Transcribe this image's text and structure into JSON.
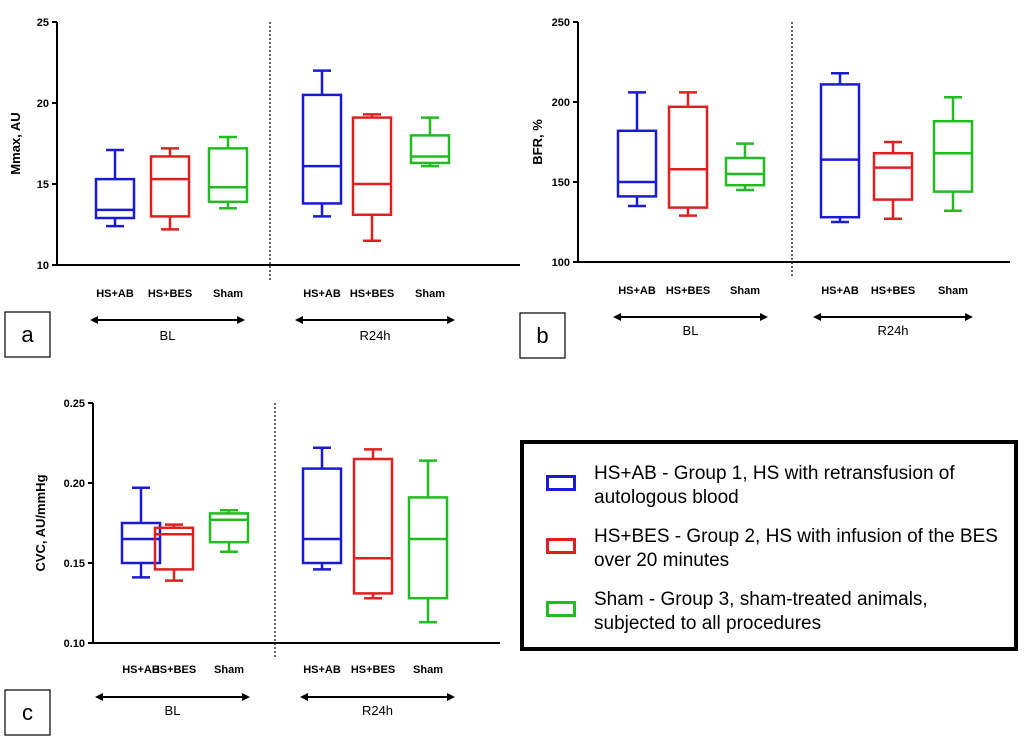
{
  "chart_data": [
    {
      "type": "box",
      "panel_label": "a",
      "ylabel": "Mmax, AU",
      "ylim": [
        10,
        25
      ],
      "yticks": [
        10,
        15,
        20,
        25
      ],
      "categories": [
        "HS+AB",
        "HS+BES",
        "Sham",
        "HS+AB",
        "HS+BES",
        "Sham"
      ],
      "groups": [
        "BL",
        "R24h"
      ],
      "colors": [
        "#1a1ad6",
        "#e02020",
        "#22bb22",
        "#1a1ad6",
        "#e02020",
        "#22bb22"
      ],
      "boxes": [
        {
          "min": 12.4,
          "q1": 12.9,
          "median": 13.4,
          "q3": 15.3,
          "max": 17.1
        },
        {
          "min": 12.2,
          "q1": 13.0,
          "median": 15.3,
          "q3": 16.7,
          "max": 17.2
        },
        {
          "min": 13.5,
          "q1": 13.9,
          "median": 14.8,
          "q3": 17.2,
          "max": 17.9
        },
        {
          "min": 13.0,
          "q1": 13.8,
          "median": 16.1,
          "q3": 20.5,
          "max": 22.0
        },
        {
          "min": 11.5,
          "q1": 13.1,
          "median": 15.0,
          "q3": 19.1,
          "max": 19.3
        },
        {
          "min": 16.1,
          "q1": 16.3,
          "median": 16.7,
          "q3": 18.0,
          "max": 19.1
        }
      ]
    },
    {
      "type": "box",
      "panel_label": "b",
      "ylabel": "BFR, %",
      "ylim": [
        100,
        250
      ],
      "yticks": [
        100,
        150,
        200,
        250
      ],
      "categories": [
        "HS+AB",
        "HS+BES",
        "Sham",
        "HS+AB",
        "HS+BES",
        "Sham"
      ],
      "groups": [
        "BL",
        "R24h"
      ],
      "colors": [
        "#1a1ad6",
        "#e02020",
        "#22bb22",
        "#1a1ad6",
        "#e02020",
        "#22bb22"
      ],
      "boxes": [
        {
          "min": 135,
          "q1": 141,
          "median": 150,
          "q3": 182,
          "max": 206
        },
        {
          "min": 129,
          "q1": 134,
          "median": 158,
          "q3": 197,
          "max": 206
        },
        {
          "min": 145,
          "q1": 148,
          "median": 155,
          "q3": 165,
          "max": 174
        },
        {
          "min": 125,
          "q1": 128,
          "median": 164,
          "q3": 211,
          "max": 218
        },
        {
          "min": 127,
          "q1": 139,
          "median": 159,
          "q3": 168,
          "max": 175
        },
        {
          "min": 132,
          "q1": 144,
          "median": 168,
          "q3": 188,
          "max": 203
        }
      ]
    },
    {
      "type": "box",
      "panel_label": "c",
      "ylabel": "CVC, AU/mmHg",
      "ylim": [
        0.1,
        0.25
      ],
      "yticks": [
        {
          "value": 0.1,
          "label": "0.10"
        },
        0.15,
        {
          "value": 0.2,
          "label": "0.20"
        },
        0.25
      ],
      "categories": [
        "HS+AB",
        "HS+BES",
        "Sham",
        "HS+AB",
        "HS+BES",
        "Sham"
      ],
      "groups": [
        "BL",
        "R24h"
      ],
      "colors": [
        "#1a1ad6",
        "#e02020",
        "#22bb22",
        "#1a1ad6",
        "#e02020",
        "#22bb22"
      ],
      "boxes": [
        {
          "min": 0.141,
          "q1": 0.15,
          "median": 0.165,
          "q3": 0.175,
          "max": 0.197
        },
        {
          "min": 0.139,
          "q1": 0.146,
          "median": 0.168,
          "q3": 0.172,
          "max": 0.174
        },
        {
          "min": 0.157,
          "q1": 0.163,
          "median": 0.177,
          "q3": 0.181,
          "max": 0.183
        },
        {
          "min": 0.146,
          "q1": 0.15,
          "median": 0.165,
          "q3": 0.209,
          "max": 0.222
        },
        {
          "min": 0.128,
          "q1": 0.131,
          "median": 0.153,
          "q3": 0.215,
          "max": 0.221
        },
        {
          "min": 0.113,
          "q1": 0.128,
          "median": 0.165,
          "q3": 0.191,
          "max": 0.214
        }
      ]
    }
  ],
  "legend": {
    "entries": [
      {
        "label": "HS+AB - Group 1, HS with retransfusion of autologous blood",
        "color": "#1a1ad6"
      },
      {
        "label": "HS+BES - Group 2, HS with infusion of the BES over 20 minutes",
        "color": "#e02020"
      },
      {
        "label": "Sham - Group 3, sham-treated animals, subjected to all procedures",
        "color": "#22bb22"
      }
    ]
  }
}
